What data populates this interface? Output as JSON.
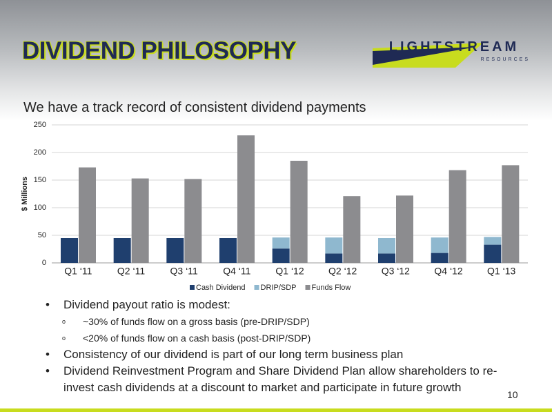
{
  "header": {
    "title": "DIVIDEND PHILOSOPHY",
    "logo": "LIGHTSTREAM",
    "logo_sub": "RESOURCES"
  },
  "subtitle": "We have a track record of consistent dividend payments",
  "chart_data": {
    "type": "bar",
    "y_label": "$ Millions",
    "categories": [
      "Q1 ‘11",
      "Q2 ‘11",
      "Q3 ‘11",
      "Q4 ‘11",
      "Q1 ‘12",
      "Q2 ‘12",
      "Q3 ‘12",
      "Q4 ‘12",
      "Q1 ‘13"
    ],
    "series": [
      {
        "name": "Cash Dividend",
        "color": "#1f3f6e",
        "values": [
          45,
          45,
          45,
          45,
          26,
          17,
          17,
          18,
          33
        ]
      },
      {
        "name": "DRIP/SDP",
        "color": "#8fb8cf",
        "values": [
          0,
          0,
          0,
          0,
          20,
          29,
          28,
          28,
          14
        ]
      },
      {
        "name": "Funds Flow",
        "color": "#8c8c8f",
        "values": [
          173,
          153,
          152,
          231,
          185,
          121,
          122,
          168,
          177
        ]
      }
    ],
    "ylim": [
      0,
      250
    ],
    "yticks": [
      0,
      50,
      100,
      150,
      200,
      250
    ],
    "grid": true,
    "legend": "bottom"
  },
  "bullets": [
    {
      "level": 1,
      "text": "Dividend payout ratio is modest:"
    },
    {
      "level": 2,
      "text": "~30% of funds flow on a gross basis (pre-DRIP/SDP)"
    },
    {
      "level": 2,
      "text": "<20% of funds flow on a cash basis (post-DRIP/SDP)"
    },
    {
      "level": 1,
      "text": "Consistency of our dividend is part of our long term business plan"
    },
    {
      "level": 1,
      "text": "Dividend Reinvestment Program and Share Dividend Plan allow shareholders to re-invest cash dividends at a discount to market and participate in future growth"
    }
  ],
  "page_number": "10"
}
